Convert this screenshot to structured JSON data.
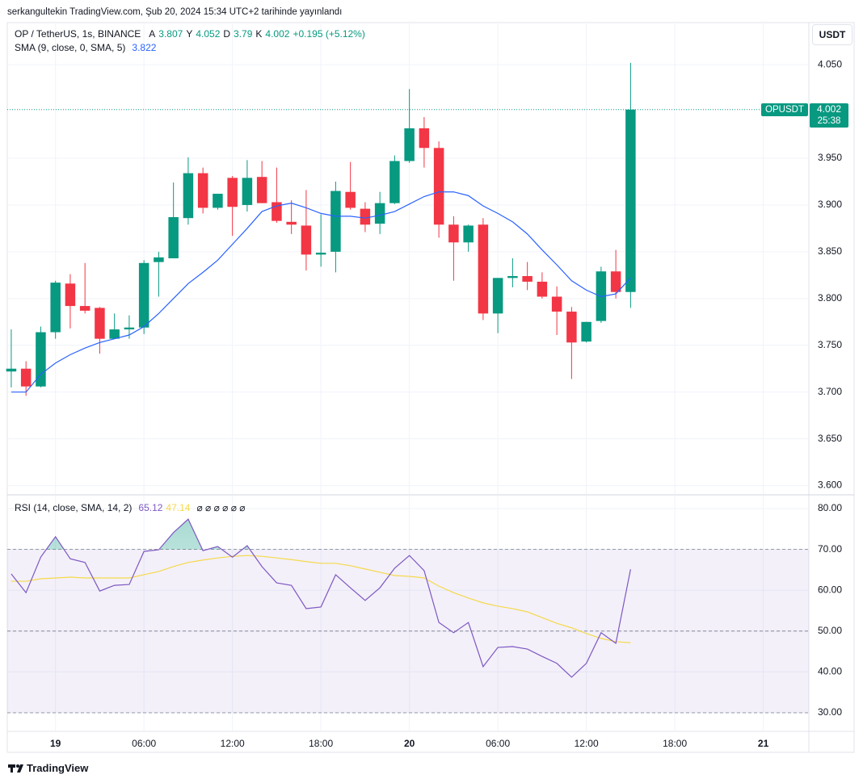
{
  "attribution": "serkangultekin TradingView.com, Şub 20, 2024 15:34 UTC+2 tarihinde yayınlandı",
  "brand": "TradingView",
  "chart_data": [
    {
      "type": "candlestick",
      "title": "OP / TetherUS, 1s, BINANCE",
      "ohlc_labels": [
        "A",
        "Y",
        "D",
        "K"
      ],
      "change_label": "+0.195 (+5.12%)",
      "currency": "USDT",
      "price_label": "OPUSDT",
      "countdown": "25:38",
      "up_color": "#089981",
      "down_color": "#f23645",
      "open": [
        3.722,
        3.725,
        3.706,
        3.764,
        3.816,
        3.792,
        3.79,
        3.757,
        3.767,
        3.769,
        3.839,
        3.843,
        3.886,
        3.934,
        3.897,
        3.929,
        3.9,
        3.93,
        3.903,
        3.882,
        3.878,
        3.847,
        3.85,
        3.914,
        3.896,
        3.88,
        3.902,
        3.947,
        3.982,
        3.961,
        3.879,
        3.86,
        3.879,
        3.784,
        3.822,
        3.824,
        3.818,
        3.802,
        3.786,
        3.754,
        3.776,
        3.829,
        3.807
      ],
      "high": [
        3.767,
        3.733,
        3.77,
        3.819,
        3.826,
        3.838,
        3.791,
        3.784,
        3.782,
        3.841,
        3.85,
        3.924,
        3.951,
        3.94,
        3.912,
        3.931,
        3.948,
        3.947,
        3.94,
        3.905,
        3.916,
        3.89,
        3.925,
        3.946,
        3.903,
        3.914,
        3.953,
        4.024,
        3.994,
        3.968,
        3.888,
        3.879,
        3.886,
        3.822,
        3.843,
        3.839,
        3.828,
        3.813,
        3.791,
        3.775,
        3.834,
        3.852,
        4.052
      ],
      "low": [
        3.705,
        3.696,
        3.705,
        3.757,
        3.768,
        3.784,
        3.741,
        3.757,
        3.757,
        3.762,
        3.802,
        3.843,
        3.879,
        3.891,
        3.895,
        3.867,
        3.893,
        3.902,
        3.881,
        3.869,
        3.83,
        3.834,
        3.828,
        3.895,
        3.871,
        3.869,
        3.901,
        3.945,
        3.94,
        3.865,
        3.819,
        3.85,
        3.777,
        3.763,
        3.812,
        3.809,
        3.8,
        3.761,
        3.714,
        3.753,
        3.774,
        3.8,
        3.79
      ],
      "close": [
        3.725,
        3.706,
        3.764,
        3.817,
        3.792,
        3.787,
        3.757,
        3.767,
        3.769,
        3.838,
        3.844,
        3.887,
        3.934,
        3.897,
        3.912,
        3.898,
        3.929,
        3.902,
        3.883,
        3.879,
        3.847,
        3.849,
        3.915,
        3.897,
        3.879,
        3.902,
        3.947,
        3.982,
        3.961,
        3.879,
        3.86,
        3.878,
        3.784,
        3.822,
        3.824,
        3.818,
        3.802,
        3.786,
        3.753,
        3.775,
        3.829,
        3.807,
        4.002
      ],
      "overlays": [
        {
          "name": "SMA (9, close, 0, SMA, 5)",
          "color": "#2962ff",
          "values": [
            3.7,
            3.7,
            3.719,
            3.731,
            3.74,
            3.747,
            3.753,
            3.757,
            3.761,
            3.77,
            3.784,
            3.8,
            3.816,
            3.828,
            3.841,
            3.858,
            3.875,
            3.893,
            3.899,
            3.902,
            3.897,
            3.891,
            3.888,
            3.888,
            3.886,
            3.889,
            3.893,
            3.901,
            3.909,
            3.914,
            3.914,
            3.91,
            3.899,
            3.891,
            3.882,
            3.869,
            3.852,
            3.836,
            3.819,
            3.809,
            3.802,
            3.805,
            3.822
          ]
        }
      ],
      "xlim": [
        -0.27,
        54.09
      ],
      "ylim": [
        3.591,
        4.095
      ],
      "yticks": [
        {
          "value": 4.05,
          "label": "4.050"
        },
        {
          "value": 3.95,
          "label": "3.950"
        },
        {
          "value": 3.9,
          "label": "3.900"
        },
        {
          "value": 3.85,
          "label": "3.850"
        },
        {
          "value": 3.8,
          "label": "3.800"
        },
        {
          "value": 3.75,
          "label": "3.750"
        },
        {
          "value": 3.7,
          "label": "3.700"
        },
        {
          "value": 3.65,
          "label": "3.650"
        },
        {
          "value": 3.6,
          "label": "3.600"
        }
      ],
      "grid": true
    },
    {
      "type": "line",
      "title": "RSI (14, close, SMA, 14, 2)",
      "extra_legend": "⌀ ⌀ ⌀ ⌀ ⌀ ⌀",
      "series": [
        {
          "color": "#7e57c2",
          "values": [
            64.0,
            59.4,
            68.1,
            73.1,
            67.7,
            66.8,
            59.8,
            61.2,
            61.4,
            69.5,
            69.9,
            74.1,
            77.4,
            69.7,
            70.7,
            68.1,
            70.9,
            65.8,
            61.8,
            61.2,
            55.5,
            55.9,
            63.8,
            60.6,
            57.5,
            60.6,
            65.4,
            68.5,
            64.8,
            52.1,
            49.6,
            52.1,
            41.3,
            46.0,
            46.2,
            45.6,
            43.8,
            42.1,
            38.7,
            42.1,
            49.6,
            47.0,
            65.12
          ]
        },
        {
          "color": "#f5d94a",
          "values": [
            62.2,
            62.2,
            62.8,
            63.0,
            63.2,
            63.0,
            63.0,
            63.0,
            63.0,
            63.8,
            64.6,
            65.8,
            66.8,
            67.4,
            67.9,
            68.3,
            68.5,
            68.3,
            67.9,
            67.5,
            67.0,
            66.6,
            66.6,
            66.0,
            65.2,
            64.4,
            63.6,
            63.4,
            63.0,
            61.0,
            59.4,
            58.1,
            56.9,
            56.1,
            55.5,
            54.7,
            53.3,
            51.9,
            50.8,
            49.4,
            48.2,
            47.4,
            47.14
          ]
        }
      ],
      "levels": [
        70,
        50,
        30
      ],
      "band_color": "#7e57c2",
      "overbought_color": "#089981",
      "xlim": [
        -0.27,
        54.09
      ],
      "xticks": [
        {
          "value": 3,
          "label": "19"
        },
        {
          "value": 9,
          "label": "06:00"
        },
        {
          "value": 15,
          "label": "12:00"
        },
        {
          "value": 21,
          "label": "18:00"
        },
        {
          "value": 27,
          "label": "20"
        },
        {
          "value": 33,
          "label": "06:00"
        },
        {
          "value": 39,
          "label": "12:00"
        },
        {
          "value": 45,
          "label": "18:00"
        },
        {
          "value": 51,
          "label": "21"
        }
      ],
      "ylim": [
        25.65,
        83.16
      ],
      "yticks": [
        {
          "value": 80,
          "label": "80.00"
        },
        {
          "value": 70,
          "label": "70.00"
        },
        {
          "value": 60,
          "label": "60.00"
        },
        {
          "value": 50,
          "label": "50.00"
        },
        {
          "value": 40,
          "label": "40.00"
        },
        {
          "value": 30,
          "label": "30.00"
        }
      ],
      "grid": true
    }
  ]
}
